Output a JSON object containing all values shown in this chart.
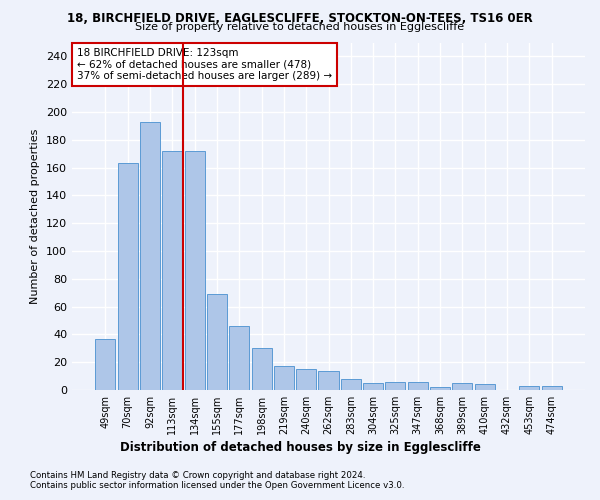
{
  "title1": "18, BIRCHFIELD DRIVE, EAGLESCLIFFE, STOCKTON-ON-TEES, TS16 0ER",
  "title2": "Size of property relative to detached houses in Egglescliffe",
  "xlabel": "Distribution of detached houses by size in Egglescliffe",
  "ylabel": "Number of detached properties",
  "categories": [
    "49sqm",
    "70sqm",
    "92sqm",
    "113sqm",
    "134sqm",
    "155sqm",
    "177sqm",
    "198sqm",
    "219sqm",
    "240sqm",
    "262sqm",
    "283sqm",
    "304sqm",
    "325sqm",
    "347sqm",
    "368sqm",
    "389sqm",
    "410sqm",
    "432sqm",
    "453sqm",
    "474sqm"
  ],
  "values": [
    37,
    163,
    193,
    172,
    172,
    69,
    46,
    30,
    17,
    15,
    14,
    8,
    5,
    6,
    6,
    2,
    5,
    4,
    0,
    3,
    3
  ],
  "bar_color": "#aec6e8",
  "bar_edge_color": "#5b9bd5",
  "vline_x": 3.5,
  "vline_color": "#cc0000",
  "annotation_text": "18 BIRCHFIELD DRIVE: 123sqm\n← 62% of detached houses are smaller (478)\n37% of semi-detached houses are larger (289) →",
  "annotation_box_color": "white",
  "annotation_box_edge_color": "#cc0000",
  "ylim": [
    0,
    250
  ],
  "yticks": [
    0,
    20,
    40,
    60,
    80,
    100,
    120,
    140,
    160,
    180,
    200,
    220,
    240
  ],
  "footer1": "Contains HM Land Registry data © Crown copyright and database right 2024.",
  "footer2": "Contains public sector information licensed under the Open Government Licence v3.0.",
  "bg_color": "#eef2fb",
  "plot_bg_color": "#eef2fb",
  "grid_color": "white"
}
